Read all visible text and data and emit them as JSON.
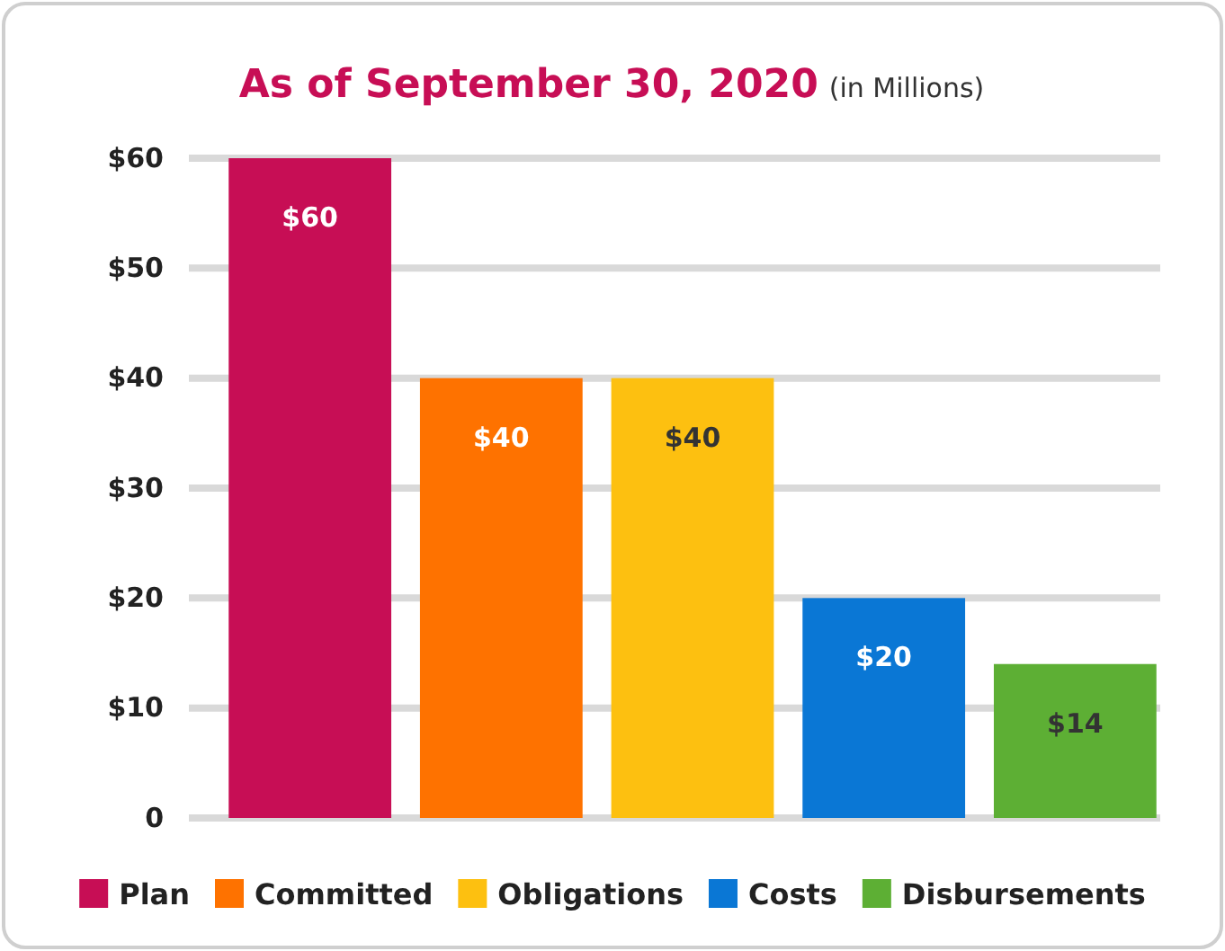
{
  "chart_data": {
    "type": "bar",
    "title": "As of September 30, 2020",
    "subtitle": "(in Millions)",
    "categories": [
      null,
      null,
      null,
      null,
      null
    ],
    "series": [
      {
        "name": "Plan",
        "color": "#c70e55",
        "values": [
          60,
          null,
          null,
          null,
          null
        ],
        "value_labels": [
          "$60",
          null,
          null,
          null,
          null
        ]
      },
      {
        "name": "Committed",
        "color": "#fe7200",
        "values": [
          null,
          40,
          null,
          null,
          null
        ],
        "value_labels": [
          null,
          "$40",
          null,
          null,
          null
        ]
      },
      {
        "name": "Obligations",
        "color": "#fdc010",
        "values": [
          null,
          null,
          40,
          null,
          null
        ],
        "value_labels": [
          null,
          null,
          "$40",
          null,
          null
        ]
      },
      {
        "name": "Costs",
        "color": "#0a77d5",
        "values": [
          null,
          null,
          null,
          20,
          null
        ],
        "value_labels": [
          null,
          null,
          null,
          "$20",
          null
        ]
      },
      {
        "name": "Disbursements",
        "color": "#5daf34",
        "values": [
          null,
          null,
          null,
          null,
          14
        ],
        "value_labels": [
          null,
          null,
          null,
          null,
          "$14"
        ]
      }
    ],
    "ylim": [
      0,
      60
    ],
    "yticks": [
      {
        "value": 0,
        "label": "0"
      },
      {
        "value": 10,
        "label": "$10"
      },
      {
        "value": 20,
        "label": "$20"
      },
      {
        "value": 30,
        "label": "$30"
      },
      {
        "value": 40,
        "label": "$40"
      },
      {
        "value": 50,
        "label": "$50"
      },
      {
        "value": 60,
        "label": "$60"
      }
    ],
    "grid": "y",
    "legend": "bottom",
    "tick_labels": "y"
  }
}
